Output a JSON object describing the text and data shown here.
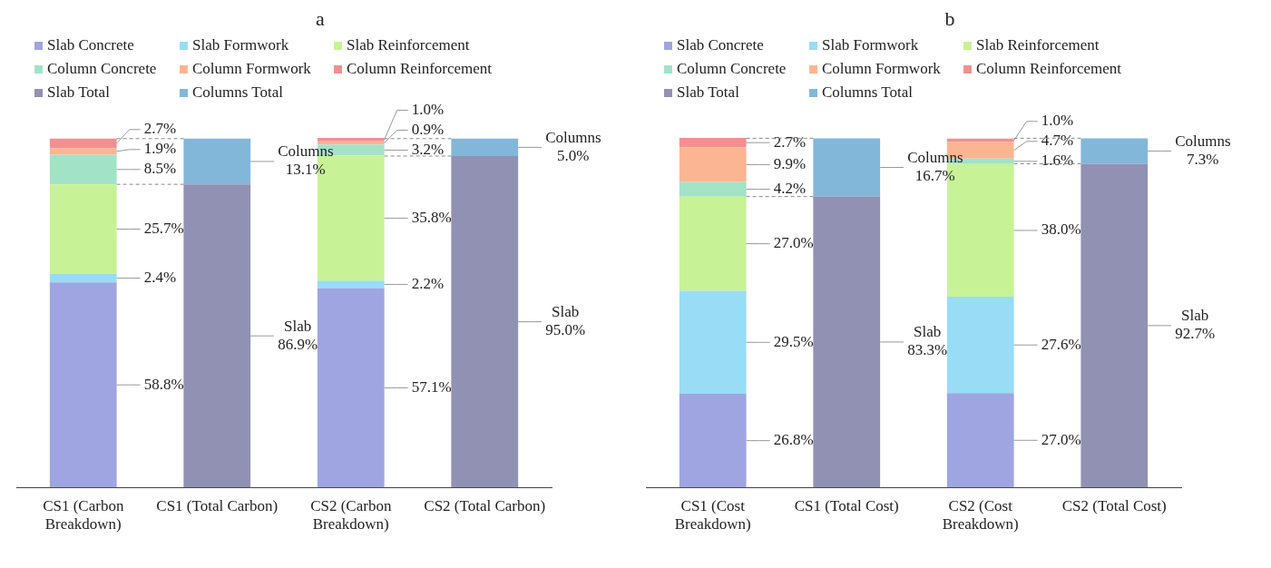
{
  "chart_data": [
    {
      "type": "bar",
      "title": "a",
      "stacked": true,
      "legend": "top",
      "tick_labels": "x",
      "categories": [
        "CS1 (Carbon Breakdown)",
        "CS1 (Total Carbon)",
        "CS2 (Carbon Breakdown)",
        "CS2 (Total Carbon)"
      ],
      "series": [
        {
          "name": "Slab Concrete",
          "color": "#9ea5e0",
          "values": [
            58.8,
            null,
            57.1,
            null
          ],
          "value_labels": [
            "58.8%",
            null,
            "57.1%",
            null
          ]
        },
        {
          "name": "Slab Formwork",
          "color": "#98dcf5",
          "values": [
            2.4,
            null,
            2.2,
            null
          ],
          "value_labels": [
            "2.4%",
            null,
            "2.2%",
            null
          ]
        },
        {
          "name": "Slab Reinforcement",
          "color": "#c8f296",
          "values": [
            25.7,
            null,
            35.8,
            null
          ],
          "value_labels": [
            "25.7%",
            null,
            "35.8%",
            null
          ]
        },
        {
          "name": "Column Concrete",
          "color": "#a2e3c8",
          "values": [
            8.5,
            null,
            3.2,
            null
          ],
          "value_labels": [
            "8.5%",
            null,
            "3.2%",
            null
          ]
        },
        {
          "name": "Column Formwork",
          "color": "#fbb592",
          "values": [
            1.9,
            null,
            0.9,
            null
          ],
          "value_labels": [
            "1.9%",
            null,
            "0.9%",
            null
          ]
        },
        {
          "name": "Column Reinforcement",
          "color": "#f29090",
          "values": [
            2.7,
            null,
            1.0,
            null
          ],
          "value_labels": [
            "2.7%",
            null,
            "1.0%",
            null
          ]
        },
        {
          "name": "Slab Total",
          "color": "#9191b3",
          "values": [
            null,
            86.9,
            null,
            95.0
          ],
          "value_labels": [
            null,
            "Slab\n86.9%",
            null,
            "Slab\n95.0%"
          ]
        },
        {
          "name": "Columns Total",
          "color": "#82b7da",
          "values": [
            null,
            13.1,
            null,
            5.0
          ],
          "value_labels": [
            null,
            "Columns\n13.1%",
            null,
            "Columns\n5.0%"
          ]
        }
      ]
    },
    {
      "type": "bar",
      "title": "b",
      "stacked": true,
      "legend": "top",
      "tick_labels": "x",
      "categories": [
        "CS1 (Cost Breakdown)",
        "CS1 (Total Cost)",
        "CS2 (Cost Breakdown)",
        "CS2 (Total Cost)"
      ],
      "series": [
        {
          "name": "Slab Concrete",
          "color": "#9ea5e0",
          "values": [
            26.8,
            null,
            27.0,
            null
          ],
          "value_labels": [
            "26.8%",
            null,
            "27.0%",
            null
          ]
        },
        {
          "name": "Slab Formwork",
          "color": "#98dcf5",
          "values": [
            29.5,
            null,
            27.6,
            null
          ],
          "value_labels": [
            "29.5%",
            null,
            "27.6%",
            null
          ]
        },
        {
          "name": "Slab Reinforcement",
          "color": "#c8f296",
          "values": [
            27.0,
            null,
            38.0,
            null
          ],
          "value_labels": [
            "27.0%",
            null,
            "38.0%",
            null
          ]
        },
        {
          "name": "Column Concrete",
          "color": "#a2e3c8",
          "values": [
            4.2,
            null,
            1.6,
            null
          ],
          "value_labels": [
            "4.2%",
            null,
            "1.6%",
            null
          ]
        },
        {
          "name": "Column Formwork",
          "color": "#fbb592",
          "values": [
            9.9,
            null,
            4.7,
            null
          ],
          "value_labels": [
            "9.9%",
            null,
            "4.7%",
            null
          ]
        },
        {
          "name": "Column Reinforcement",
          "color": "#f29090",
          "values": [
            2.7,
            null,
            1.0,
            null
          ],
          "value_labels": [
            "2.7%",
            null,
            "1.0%",
            null
          ]
        },
        {
          "name": "Slab Total",
          "color": "#9191b3",
          "values": [
            null,
            83.3,
            null,
            92.7
          ],
          "value_labels": [
            null,
            "Slab\n83.3%",
            null,
            "Slab\n92.7%"
          ]
        },
        {
          "name": "Columns Total",
          "color": "#82b7da",
          "values": [
            null,
            16.7,
            null,
            7.3
          ],
          "value_labels": [
            null,
            "Columns\n16.7%",
            null,
            "Columns\n7.3%"
          ]
        }
      ]
    }
  ]
}
